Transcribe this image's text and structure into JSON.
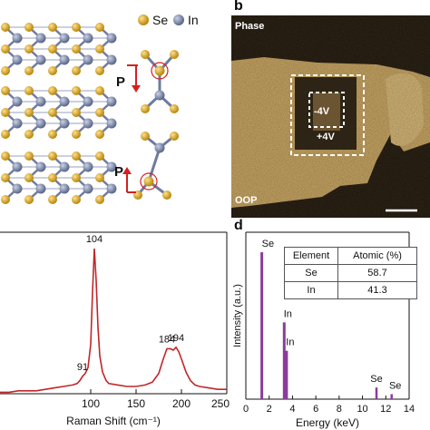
{
  "panel_a": {
    "legend": [
      {
        "label": "Se",
        "color": "#d9a520"
      },
      {
        "label": "In",
        "color": "#7f8aa8"
      }
    ],
    "polarization_label": "P",
    "arrow_color": "#d42020"
  },
  "panel_b": {
    "letter": "b",
    "top_label": "Phase",
    "bottom_label": "OOP",
    "inner_box_label": "-4V",
    "outer_box_label": "+4V"
  },
  "panel_d": {
    "letter": "d",
    "table": {
      "header": [
        "Element",
        "Atomic (%)"
      ],
      "rows": [
        [
          "Se",
          "58.7"
        ],
        [
          "In",
          "41.3"
        ]
      ]
    }
  },
  "chart_data": [
    {
      "type": "line",
      "panel": "c",
      "xlabel": "Raman Shift (cm⁻¹)",
      "xlim": [
        0,
        250
      ],
      "xticks": [
        "100",
        "150",
        "200",
        "250"
      ],
      "color": "#c0262a",
      "peak_labels": [
        "91",
        "104",
        "184",
        "194"
      ],
      "x": [
        0,
        10,
        20,
        30,
        40,
        50,
        60,
        70,
        80,
        85,
        88,
        91,
        94,
        97,
        100,
        102,
        104,
        106,
        108,
        110,
        113,
        117,
        120,
        130,
        140,
        150,
        160,
        168,
        175,
        180,
        184,
        188,
        191,
        194,
        197,
        200,
        205,
        210,
        215,
        220,
        230,
        240,
        250
      ],
      "y": [
        0.01,
        0.01,
        0.02,
        0.02,
        0.02,
        0.03,
        0.04,
        0.05,
        0.06,
        0.07,
        0.09,
        0.12,
        0.14,
        0.18,
        0.34,
        0.7,
        1.0,
        0.78,
        0.46,
        0.26,
        0.15,
        0.09,
        0.07,
        0.06,
        0.05,
        0.05,
        0.06,
        0.08,
        0.14,
        0.24,
        0.31,
        0.31,
        0.3,
        0.32,
        0.29,
        0.24,
        0.15,
        0.09,
        0.06,
        0.05,
        0.04,
        0.03,
        0.03
      ]
    },
    {
      "type": "bar",
      "panel": "d",
      "xlabel": "Energy (keV)",
      "ylabel": "Intensity (a.u.)",
      "xlim": [
        0,
        14
      ],
      "xticks": [
        "0",
        "2",
        "4",
        "6",
        "8",
        "10",
        "12",
        "14"
      ],
      "color": "#8a3d9c",
      "peaks": [
        {
          "x": 1.37,
          "y": 0.88,
          "label": "Se"
        },
        {
          "x": 3.29,
          "y": 0.46,
          "label": "In"
        },
        {
          "x": 3.49,
          "y": 0.29,
          "label": "In"
        },
        {
          "x": 11.2,
          "y": 0.07,
          "label": "Se"
        },
        {
          "x": 12.5,
          "y": 0.03,
          "label": "Se"
        }
      ]
    }
  ]
}
